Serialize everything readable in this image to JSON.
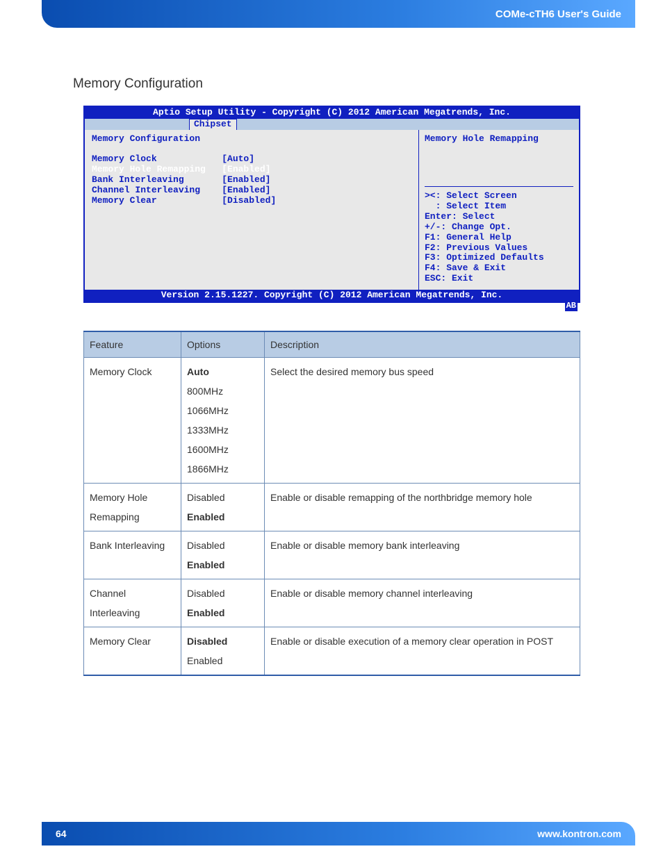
{
  "header": {
    "title": "COMe-cTH6 User's Guide"
  },
  "section": {
    "title": "Memory Configuration"
  },
  "bios": {
    "title": "Aptio Setup Utility - Copyright (C) 2012 American Megatrends, Inc.",
    "tab": "Chipset",
    "panel_title": "Memory Configuration",
    "rows": [
      {
        "label": "Memory Clock",
        "value": "[Auto]",
        "selected": false
      },
      {
        "label": "Memory Hole Remapping",
        "value": "[Enabled]",
        "selected": true
      },
      {
        "label": "Bank Interleaving",
        "value": "[Enabled]",
        "selected": false
      },
      {
        "label": "Channel Interleaving",
        "value": "[Enabled]",
        "selected": false
      },
      {
        "label": "Memory Clear",
        "value": "[Disabled]",
        "selected": false
      }
    ],
    "help_title": "Memory Hole Remapping",
    "help_keys": [
      "><: Select Screen",
      "  : Select Item",
      "Enter: Select",
      "+/-: Change Opt.",
      "F1: General Help",
      "F2: Previous Values",
      "F3: Optimized Defaults",
      "F4: Save & Exit",
      "ESC: Exit"
    ],
    "footer": "Version 2.15.1227. Copyright (C) 2012 American Megatrends, Inc.",
    "corner": "AB",
    "colors": {
      "frame": "#1020c0",
      "body_bg": "#e8e8e8",
      "tabbar_bg": "#b8cce4",
      "text": "#1020c0",
      "selected_text": "#ffffff"
    }
  },
  "table": {
    "columns": [
      "Feature",
      "Options",
      "Description"
    ],
    "header_bg": "#b8cce4",
    "border_color": "#6b8bb5",
    "rows": [
      {
        "feature": "Memory Clock",
        "options": [
          {
            "text": "Auto",
            "bold": true
          },
          {
            "text": "800MHz",
            "bold": false
          },
          {
            "text": "1066MHz",
            "bold": false
          },
          {
            "text": "1333MHz",
            "bold": false
          },
          {
            "text": "1600MHz",
            "bold": false
          },
          {
            "text": "1866MHz",
            "bold": false
          }
        ],
        "description": "Select the desired memory bus speed"
      },
      {
        "feature": "Memory Hole Remapping",
        "options": [
          {
            "text": "Disabled",
            "bold": false
          },
          {
            "text": "Enabled",
            "bold": true
          }
        ],
        "description": "Enable or disable remapping of the northbridge memory hole"
      },
      {
        "feature": "Bank Interleaving",
        "options": [
          {
            "text": "Disabled",
            "bold": false
          },
          {
            "text": "Enabled",
            "bold": true
          }
        ],
        "description": "Enable or disable memory bank interleaving"
      },
      {
        "feature": "Channel Interleaving",
        "options": [
          {
            "text": "Disabled",
            "bold": false
          },
          {
            "text": "Enabled",
            "bold": true
          }
        ],
        "description": "Enable or disable memory channel interleaving"
      },
      {
        "feature": "Memory Clear",
        "options": [
          {
            "text": "Disabled",
            "bold": true
          },
          {
            "text": "Enabled",
            "bold": false
          }
        ],
        "description": "Enable or disable execution of a memory clear operation in POST"
      }
    ]
  },
  "footer": {
    "page": "64",
    "url": "www.kontron.com"
  }
}
